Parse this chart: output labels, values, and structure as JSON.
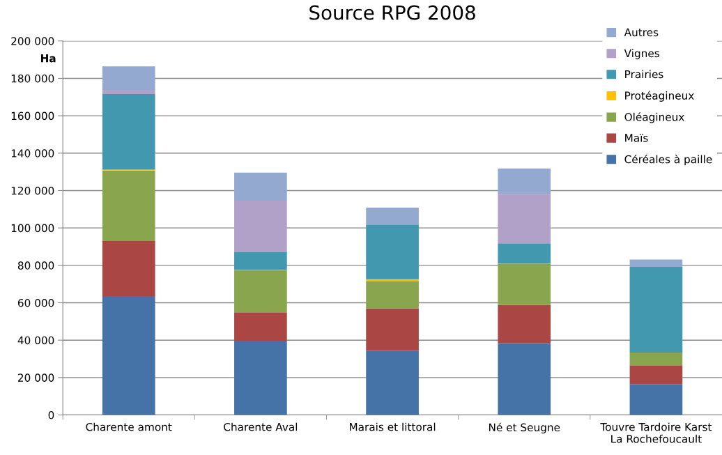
{
  "chart_data": {
    "type": "bar",
    "title": "Source RPG 2008",
    "ylabel": "Ha",
    "stacked": true,
    "categories": [
      "Charente amont",
      "Charente Aval",
      "Marais et littoral",
      "Né et Seugne",
      "Touvre Tardoire Karst\nLa Rochefoucault"
    ],
    "series": [
      {
        "name": "Céréales à paille",
        "color": "#4572a7",
        "values": [
          63500,
          39700,
          34300,
          38400,
          16500
        ]
      },
      {
        "name": "Maïs",
        "color": "#aa4643",
        "values": [
          29500,
          15200,
          22700,
          20400,
          10100
        ]
      },
      {
        "name": "Oléagineux",
        "color": "#89a54e",
        "values": [
          37700,
          22400,
          14600,
          21900,
          6800
        ]
      },
      {
        "name": "Protéagineux",
        "color": "#ffc000",
        "values": [
          500,
          400,
          1000,
          200,
          0
        ]
      },
      {
        "name": "Prairies",
        "color": "#4198af",
        "values": [
          40400,
          9300,
          29200,
          10900,
          45800
        ]
      },
      {
        "name": "Vignes",
        "color": "#b1a0c7",
        "values": [
          2200,
          27600,
          null,
          26400,
          0
        ]
      },
      {
        "name": "Autres",
        "color": "#94a9d0",
        "values": [
          12600,
          15000,
          9100,
          13600,
          3900
        ]
      }
    ],
    "ylim": [
      0,
      200000
    ],
    "yticks": [
      {
        "value": 0,
        "label": "0"
      },
      {
        "value": 20000,
        "label": "20 000"
      },
      {
        "value": 40000,
        "label": "40 000"
      },
      {
        "value": 60000,
        "label": "60 000"
      },
      {
        "value": 80000,
        "label": "80 000"
      },
      {
        "value": 100000,
        "label": "100 000"
      },
      {
        "value": 120000,
        "label": "120 000"
      },
      {
        "value": 140000,
        "label": "140 000"
      },
      {
        "value": 160000,
        "label": "160 000"
      },
      {
        "value": 180000,
        "label": "180 000"
      },
      {
        "value": 200000,
        "label": "200 000"
      }
    ],
    "grid": "y",
    "legend": "top right"
  }
}
